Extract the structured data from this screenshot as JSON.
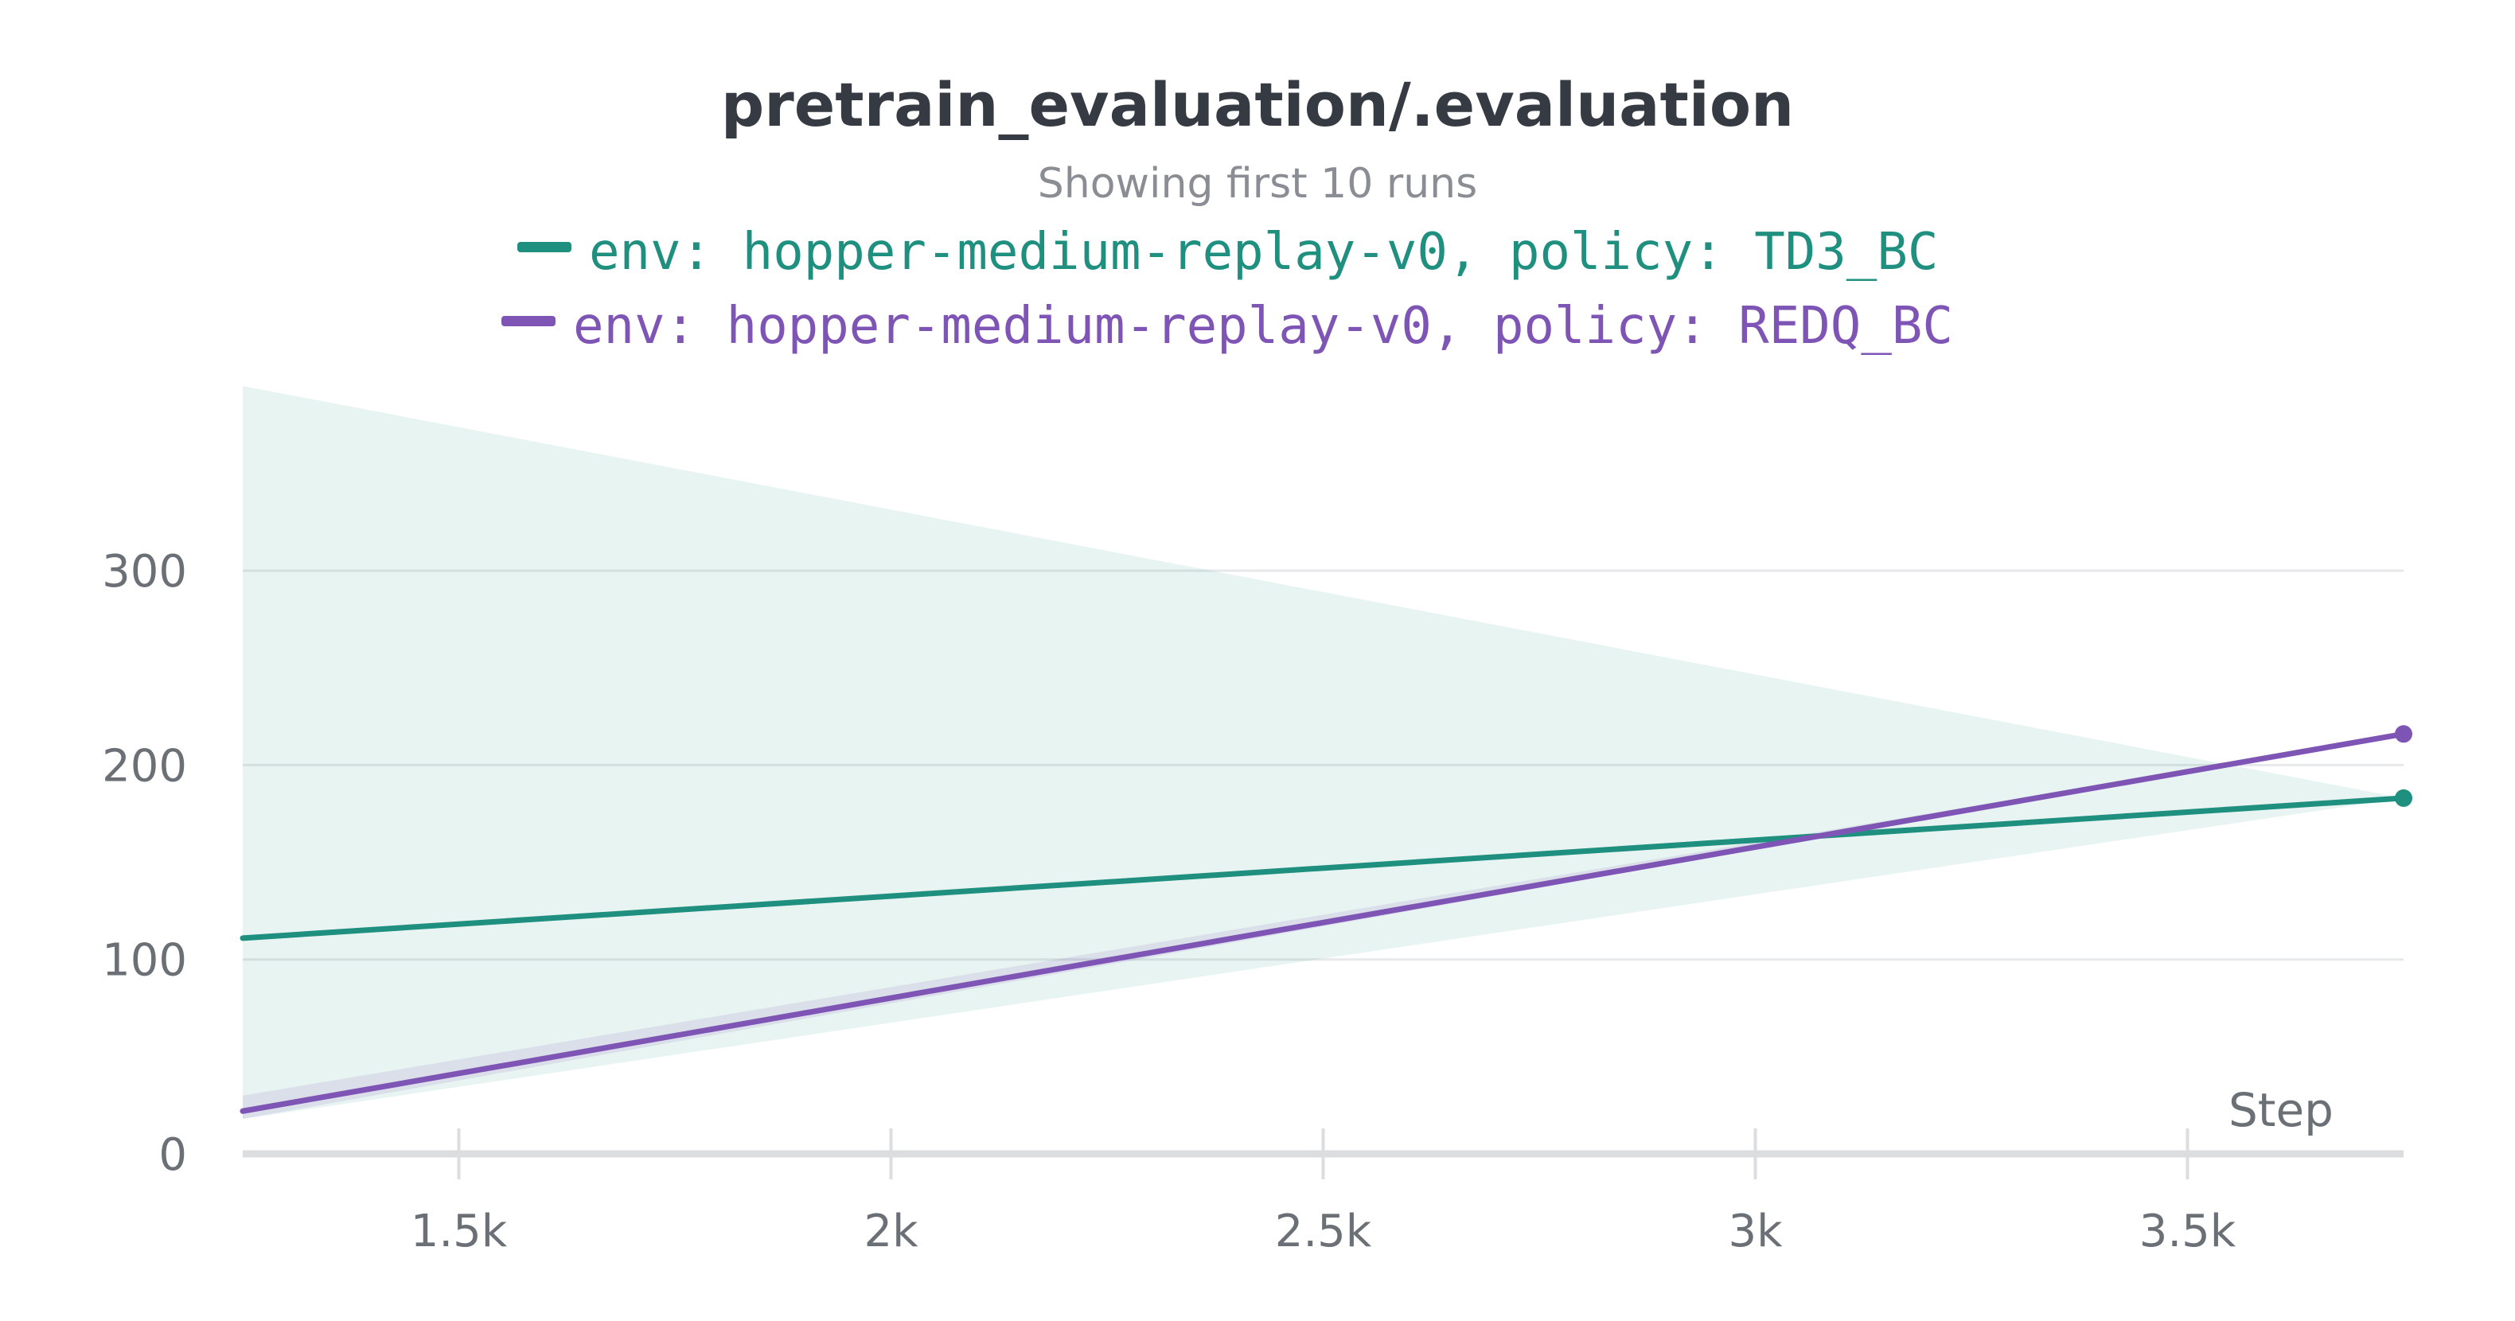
{
  "chart_data": {
    "type": "line",
    "title": "pretrain_evaluation/.evaluation",
    "subtitle": "Showing first 10 runs",
    "xlabel": "Step",
    "ylabel": "",
    "xlim": [
      1250,
      3750
    ],
    "ylim": [
      0,
      395
    ],
    "x_ticks": [
      1500,
      2000,
      2500,
      3000,
      3500
    ],
    "x_tick_labels": [
      "1.5k",
      "2k",
      "2.5k",
      "3k",
      "3.5k"
    ],
    "y_ticks": [
      0,
      100,
      200,
      300
    ],
    "y_tick_labels": [
      "0",
      "100",
      "200",
      "300"
    ],
    "grid": true,
    "legend_position": "top-center",
    "series": [
      {
        "name": "env: hopper-medium-replay-v0, policy: TD3_BC",
        "color": "#1f8f7f",
        "x": [
          1250,
          3750
        ],
        "y": [
          111,
          183
        ],
        "band_upper": [
          395,
          183
        ],
        "band_lower": [
          18,
          183
        ]
      },
      {
        "name": "env: hopper-medium-replay-v0, policy: REDQ_BC",
        "color": "#7e55b5",
        "x": [
          1250,
          3750
        ],
        "y": [
          22,
          216
        ],
        "band_upper": [
          30,
          216
        ],
        "band_lower": [
          18,
          216
        ]
      }
    ]
  }
}
